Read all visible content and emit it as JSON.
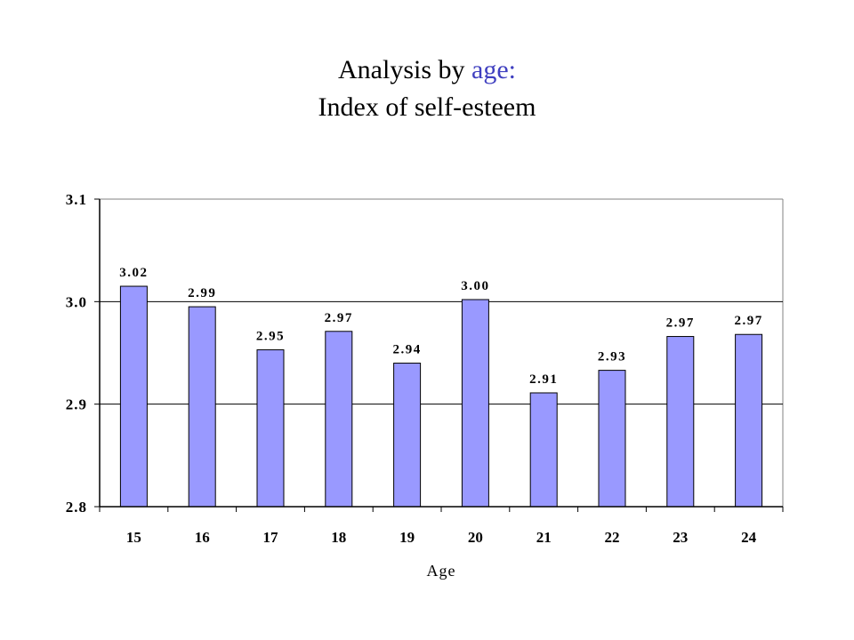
{
  "header": {
    "title_part1": "Analysis by ",
    "title_accent": "age:",
    "subtitle": "Index of self-esteem"
  },
  "colors": {
    "bar_fill": "#9999ff",
    "bar_stroke": "#000000",
    "title_accent": "#4040c0"
  },
  "chart_data": {
    "type": "bar",
    "title": "Analysis by age: Index of self-esteem",
    "xlabel": "Age",
    "ylabel": "",
    "categories": [
      "15",
      "16",
      "17",
      "18",
      "19",
      "20",
      "21",
      "22",
      "23",
      "24"
    ],
    "values": [
      3.015,
      2.995,
      2.953,
      2.971,
      2.94,
      3.002,
      2.911,
      2.933,
      2.966,
      2.968
    ],
    "data_labels": [
      "3.02",
      "2.99",
      "2.95",
      "2.97",
      "2.94",
      "3.00",
      "2.91",
      "2.93",
      "2.97",
      "2.97"
    ],
    "ylim": [
      2.8,
      3.1
    ],
    "yticks": [
      2.8,
      2.9,
      3.0,
      3.1
    ],
    "ytick_labels": [
      "2.8",
      "2.9",
      "3.0",
      "3.1"
    ],
    "grid": "horizontal",
    "legend": "none"
  }
}
